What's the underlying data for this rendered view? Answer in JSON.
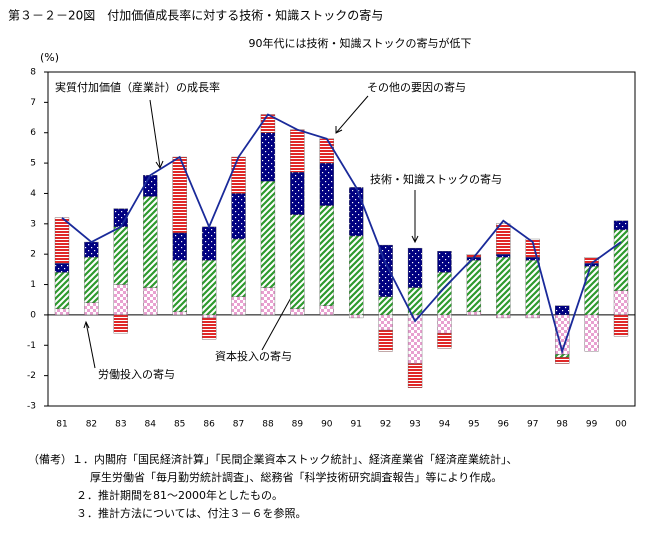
{
  "chart_data": {
    "type": "stacked-bar-line",
    "title": "第３－２－20図　付加価値成長率に対する技術・知識ストックの寄与",
    "subtitle": "90年代には技術・知識ストックの寄与が低下",
    "y_label": "(%)",
    "categories": [
      "81",
      "82",
      "83",
      "84",
      "85",
      "86",
      "87",
      "88",
      "89",
      "90",
      "91",
      "92",
      "93",
      "94",
      "95",
      "96",
      "97",
      "98",
      "99",
      "00"
    ],
    "series": [
      {
        "name": "労働投入の寄与",
        "color": "#e8a0d0",
        "values": [
          0.2,
          0.4,
          1.0,
          0.9,
          0.1,
          -0.1,
          0.6,
          0.9,
          0.2,
          0.3,
          -0.1,
          -0.5,
          -1.6,
          -0.6,
          0.1,
          -0.1,
          -0.1,
          -1.3,
          -1.2,
          0.8
        ]
      },
      {
        "name": "資本投入の寄与",
        "color": "#2e9a2e",
        "values": [
          1.2,
          1.5,
          1.9,
          3.0,
          1.7,
          1.8,
          1.9,
          3.5,
          3.1,
          3.3,
          2.6,
          0.6,
          0.9,
          1.4,
          1.7,
          1.9,
          1.8,
          -0.1,
          1.6,
          2.0
        ]
      },
      {
        "name": "技術・知識ストックの寄与",
        "color": "#000080",
        "values": [
          0.3,
          0.5,
          0.6,
          0.7,
          0.9,
          1.1,
          1.5,
          1.6,
          1.4,
          1.4,
          1.6,
          1.7,
          1.3,
          0.7,
          0.1,
          0.1,
          0.1,
          0.3,
          0.1,
          0.3
        ]
      },
      {
        "name": "その他の要因の寄与",
        "color": "#e02828",
        "values": [
          1.5,
          0,
          -0.6,
          0,
          2.5,
          -0.7,
          1.2,
          0.6,
          1.4,
          0.8,
          0,
          -0.7,
          -0.8,
          -0.5,
          0.1,
          1.0,
          0.6,
          -0.2,
          0.2,
          -0.7
        ]
      }
    ],
    "line": {
      "name": "実質付加価値（産業計）の成長率",
      "color": "#1a2a9a",
      "values": [
        3.2,
        2.4,
        2.9,
        4.6,
        5.2,
        2.9,
        5.2,
        6.6,
        6.1,
        5.8,
        4.2,
        1.7,
        -0.2,
        0.9,
        1.9,
        3.1,
        2.4,
        -1.2,
        1.7,
        2.4
      ]
    },
    "ylim": [
      -3,
      8
    ],
    "yticks": [
      -3,
      -2,
      -1,
      0,
      1,
      2,
      3,
      4,
      5,
      6,
      7,
      8
    ],
    "notes": [
      "（備考）１．内閣府「国民経済計算」「民間企業資本ストック統計」、経済産業省「経済産業統計」、",
      "厚生労働省「毎月勤労統計調査」、総務省「科学技術研究調査報告」等により作成。",
      "２．推計期間を81～2000年としたもの。",
      "３．推計方法については、付注３－６を参照。"
    ]
  }
}
